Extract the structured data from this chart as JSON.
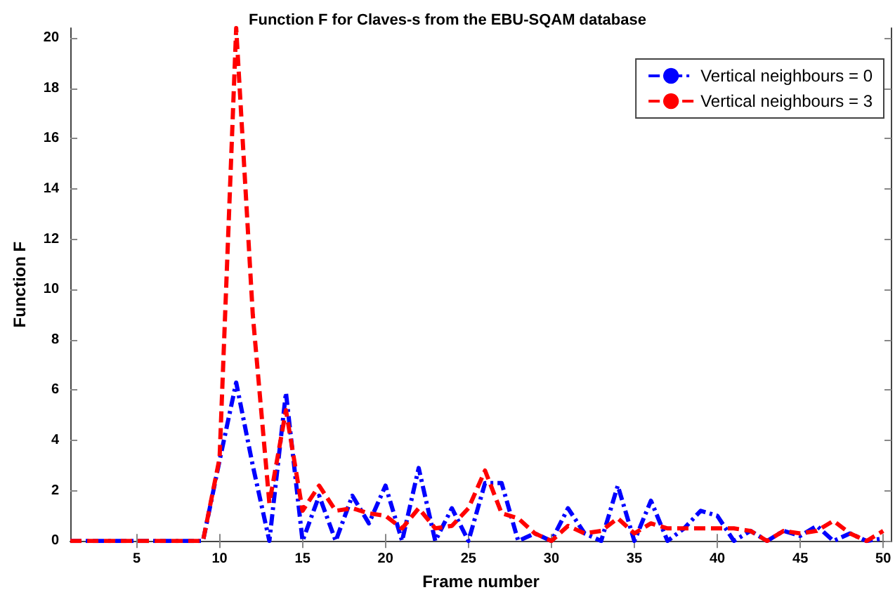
{
  "chart_data": {
    "type": "line",
    "title": "Function F for Claves-s from the EBU-SQAM database",
    "xlabel": "Frame number",
    "ylabel": "Function F",
    "x": [
      1,
      2,
      3,
      4,
      5,
      6,
      7,
      8,
      9,
      10,
      11,
      12,
      13,
      14,
      15,
      16,
      17,
      18,
      19,
      20,
      21,
      22,
      23,
      24,
      25,
      26,
      27,
      28,
      29,
      30,
      31,
      32,
      33,
      34,
      35,
      36,
      37,
      38,
      39,
      40,
      41,
      42,
      43,
      44,
      45,
      46,
      47,
      48,
      49,
      50
    ],
    "series": [
      {
        "name": "Vertical neighbours = 0",
        "color": "#0000ff",
        "line_style": "dashdot",
        "values": [
          0,
          0,
          0,
          0,
          0,
          0,
          0,
          0,
          0,
          3.2,
          6.3,
          3,
          0,
          5.9,
          0,
          1.8,
          0,
          1.8,
          0.7,
          2.2,
          0,
          2.9,
          0,
          1.3,
          0,
          2.3,
          2.3,
          0,
          0.3,
          0,
          1.3,
          0.3,
          0,
          2.2,
          0,
          1.6,
          0,
          0.5,
          1.2,
          1,
          0,
          0.4,
          0,
          0.4,
          0.2,
          0.6,
          0,
          0.3,
          0,
          0.1
        ]
      },
      {
        "name": "Vertical neighbours = 3",
        "color": "#ff0000",
        "line_style": "dashed",
        "values": [
          0,
          0,
          0,
          0,
          0,
          0,
          0,
          0,
          0,
          3.3,
          20.4,
          9,
          1.5,
          5.2,
          1.2,
          2.2,
          1.2,
          1.3,
          1.1,
          1,
          0.5,
          1.3,
          0.5,
          0.6,
          1.3,
          2.8,
          1.1,
          0.9,
          0.3,
          0,
          0.6,
          0.3,
          0.4,
          0.9,
          0.3,
          0.7,
          0.5,
          0.5,
          0.5,
          0.5,
          0.5,
          0.4,
          0,
          0.4,
          0.3,
          0.4,
          0.8,
          0.3,
          0,
          0.4
        ]
      }
    ],
    "xlim": [
      1,
      50.5
    ],
    "xticks": [
      5,
      10,
      15,
      20,
      25,
      30,
      35,
      40,
      45,
      50
    ],
    "ylim": [
      0,
      20.4
    ],
    "yticks": [
      0,
      2,
      4,
      6,
      8,
      10,
      12,
      14,
      16,
      18,
      20
    ],
    "grid": false,
    "legend": "top right",
    "marker": "none"
  }
}
